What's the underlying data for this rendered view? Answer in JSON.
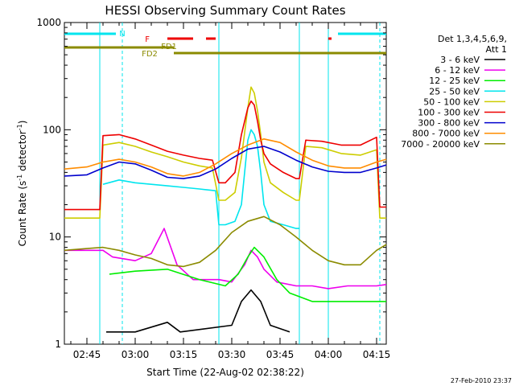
{
  "chart_data": {
    "type": "line",
    "title": "HESSI Observing Summary Count Rates",
    "xlabel": "Start Time (22-Aug-02 02:38:22)",
    "ylabel": "Count Rate (s⁻¹ detector⁻¹)",
    "ylabel_main": "Count Rate (s",
    "ylabel_sup1": "-1",
    "ylabel_mid": " detector",
    "ylabel_sup2": "-1",
    "ylabel_end": ")",
    "y_scale": "log",
    "ylim": [
      1,
      1000
    ],
    "xlim": [
      "02:38",
      "04:18"
    ],
    "x_ticks": [
      "02:45",
      "03:00",
      "03:15",
      "03:30",
      "03:45",
      "04:00",
      "04:15"
    ],
    "y_ticks": [
      "1",
      "10",
      "100",
      "1000"
    ],
    "footer": "27-Feb-2010 23:37",
    "legend_title": [
      "Det 1,3,4,5,6,9,",
      "Att 1"
    ],
    "legend_position": "right",
    "grid": false,
    "flags": [
      {
        "label": "N",
        "color": "#00e5ee",
        "segments": [
          [
            "02:38",
            "02:54"
          ],
          [
            "04:03",
            "04:18"
          ]
        ]
      },
      {
        "label": "F",
        "color": "#ee0000",
        "segments": [
          [
            "03:10",
            "03:18"
          ],
          [
            "03:22",
            "03:25"
          ],
          [
            "04:00",
            "04:01"
          ]
        ]
      },
      {
        "label": "FD1",
        "color": "#8b8b00",
        "segments": [
          [
            "02:38",
            "03:12"
          ]
        ]
      },
      {
        "label": "FD2",
        "color": "#8b8b00",
        "segments": [
          [
            "03:12",
            "04:18"
          ]
        ]
      }
    ],
    "vlines": [
      {
        "t": "02:49",
        "color": "#00e5ee",
        "style": "solid"
      },
      {
        "t": "02:56",
        "color": "#00e5ee",
        "style": "dashed"
      },
      {
        "t": "03:26",
        "color": "#00e5ee",
        "style": "solid"
      },
      {
        "t": "03:51",
        "color": "#00e5ee",
        "style": "solid"
      },
      {
        "t": "04:00",
        "color": "#00e5ee",
        "style": "solid"
      },
      {
        "t": "04:16",
        "color": "#00e5ee",
        "style": "dashed"
      }
    ],
    "series": [
      {
        "name": "3 - 6 keV",
        "color": "#000000",
        "x": [
          "02:38",
          "02:49",
          "02:51",
          "03:00",
          "03:10",
          "03:14",
          "03:30",
          "03:33",
          "03:36",
          "03:39",
          "03:42",
          "03:48",
          "03:52",
          "04:00",
          "04:18"
        ],
        "y": [
          null,
          null,
          1.3,
          1.3,
          1.6,
          1.3,
          1.5,
          2.5,
          3.2,
          2.5,
          1.5,
          1.3,
          null,
          null,
          null
        ]
      },
      {
        "name": "6 - 12 keV",
        "color": "#ee00ee",
        "x": [
          "02:38",
          "02:50",
          "02:53",
          "03:00",
          "03:05",
          "03:09",
          "03:13",
          "03:18",
          "03:26",
          "03:30",
          "03:34",
          "03:36",
          "03:38",
          "03:40",
          "03:44",
          "03:50",
          "03:55",
          "04:00",
          "04:06",
          "04:10",
          "04:15",
          "04:18"
        ],
        "y": [
          7.5,
          7.5,
          6.5,
          6.0,
          7.0,
          12,
          5.5,
          4.0,
          4.0,
          3.8,
          5.5,
          7.5,
          6.5,
          5.0,
          3.8,
          3.5,
          3.5,
          3.3,
          3.5,
          3.5,
          3.5,
          3.6
        ]
      },
      {
        "name": "12 - 25 keV",
        "color": "#00ee00",
        "x": [
          "02:38",
          "02:52",
          "03:00",
          "03:10",
          "03:20",
          "03:28",
          "03:32",
          "03:35",
          "03:37",
          "03:40",
          "03:44",
          "03:48",
          "03:55",
          "04:05",
          "04:18"
        ],
        "y": [
          null,
          4.5,
          4.8,
          5.0,
          4.0,
          3.5,
          4.5,
          6.5,
          8.0,
          6.5,
          4.0,
          3.0,
          2.5,
          2.5,
          2.5
        ]
      },
      {
        "name": "25 - 50 keV",
        "color": "#00e5ee",
        "x": [
          "02:38",
          "02:49",
          "02:50",
          "02:55",
          "03:00",
          "03:05",
          "03:10",
          "03:15",
          "03:20",
          "03:25",
          "03:26",
          "03:28",
          "03:31",
          "03:33",
          "03:34",
          "03:35",
          "03:36",
          "03:37",
          "03:38",
          "03:39",
          "03:40",
          "03:42",
          "03:46",
          "03:50",
          "03:51",
          "03:52",
          "03:55",
          "04:00",
          "04:05",
          "04:10",
          "04:15",
          "04:16",
          "04:18"
        ],
        "y": [
          null,
          null,
          31,
          34,
          32,
          31,
          30,
          29,
          28,
          27,
          13,
          13,
          14,
          20,
          40,
          80,
          100,
          90,
          70,
          40,
          20,
          14,
          13,
          12,
          12,
          null,
          null,
          null,
          null,
          null,
          null,
          null,
          null
        ]
      },
      {
        "name": "50 - 100 keV",
        "color": "#cdcd00",
        "x": [
          "02:38",
          "02:49",
          "02:50",
          "02:55",
          "03:00",
          "03:05",
          "03:10",
          "03:15",
          "03:20",
          "03:24",
          "03:26",
          "03:28",
          "03:31",
          "03:33",
          "03:35",
          "03:36",
          "03:37",
          "03:38",
          "03:39",
          "03:40",
          "03:42",
          "03:46",
          "03:50",
          "03:51",
          "03:53",
          "03:58",
          "04:04",
          "04:10",
          "04:15",
          "04:16",
          "04:18"
        ],
        "y": [
          15,
          15,
          72,
          76,
          70,
          62,
          56,
          50,
          46,
          44,
          22,
          22,
          26,
          55,
          160,
          250,
          220,
          150,
          90,
          50,
          32,
          26,
          22,
          22,
          70,
          68,
          60,
          58,
          65,
          15,
          15
        ]
      },
      {
        "name": "100 - 300 keV",
        "color": "#ee0000",
        "x": [
          "02:38",
          "02:49",
          "02:50",
          "02:55",
          "03:00",
          "03:05",
          "03:10",
          "03:15",
          "03:20",
          "03:24",
          "03:26",
          "03:28",
          "03:31",
          "03:33",
          "03:35",
          "03:36",
          "03:37",
          "03:38",
          "03:39",
          "03:40",
          "03:42",
          "03:46",
          "03:50",
          "03:51",
          "03:53",
          "03:58",
          "04:04",
          "04:10",
          "04:15",
          "04:16",
          "04:18"
        ],
        "y": [
          18,
          18,
          88,
          90,
          82,
          72,
          63,
          58,
          54,
          52,
          32,
          32,
          40,
          90,
          160,
          185,
          170,
          120,
          80,
          60,
          48,
          40,
          35,
          35,
          80,
          78,
          72,
          72,
          85,
          19,
          19
        ]
      },
      {
        "name": "300 - 800 keV",
        "color": "#0000cd",
        "x": [
          "02:38",
          "02:45",
          "02:50",
          "02:55",
          "03:00",
          "03:05",
          "03:10",
          "03:15",
          "03:20",
          "03:25",
          "03:30",
          "03:35",
          "03:40",
          "03:45",
          "03:50",
          "03:55",
          "04:00",
          "04:05",
          "04:10",
          "04:15",
          "04:18"
        ],
        "y": [
          37,
          38,
          44,
          50,
          48,
          42,
          36,
          35,
          37,
          43,
          54,
          66,
          70,
          62,
          52,
          45,
          41,
          40,
          40,
          44,
          47
        ]
      },
      {
        "name": "800 - 7000 keV",
        "color": "#ff8c00",
        "x": [
          "02:38",
          "02:45",
          "02:50",
          "02:55",
          "03:00",
          "03:05",
          "03:10",
          "03:15",
          "03:20",
          "03:25",
          "03:30",
          "03:35",
          "03:40",
          "03:45",
          "03:50",
          "03:55",
          "04:00",
          "04:05",
          "04:10",
          "04:15",
          "04:18"
        ],
        "y": [
          43,
          45,
          50,
          53,
          50,
          45,
          39,
          37,
          40,
          48,
          60,
          72,
          82,
          76,
          62,
          52,
          46,
          44,
          44,
          50,
          53
        ]
      },
      {
        "name": "7000 - 20000 keV",
        "color": "#8b8b00",
        "x": [
          "02:38",
          "02:45",
          "02:50",
          "02:55",
          "03:00",
          "03:05",
          "03:10",
          "03:15",
          "03:20",
          "03:25",
          "03:30",
          "03:35",
          "03:40",
          "03:45",
          "03:50",
          "03:55",
          "04:00",
          "04:05",
          "04:10",
          "04:15",
          "04:18"
        ],
        "y": [
          7.5,
          7.8,
          8.0,
          7.5,
          6.8,
          6.3,
          5.5,
          5.3,
          5.8,
          7.5,
          11,
          14,
          15.5,
          13,
          10,
          7.5,
          6.0,
          5.5,
          5.5,
          7.5,
          8.5
        ]
      }
    ]
  }
}
